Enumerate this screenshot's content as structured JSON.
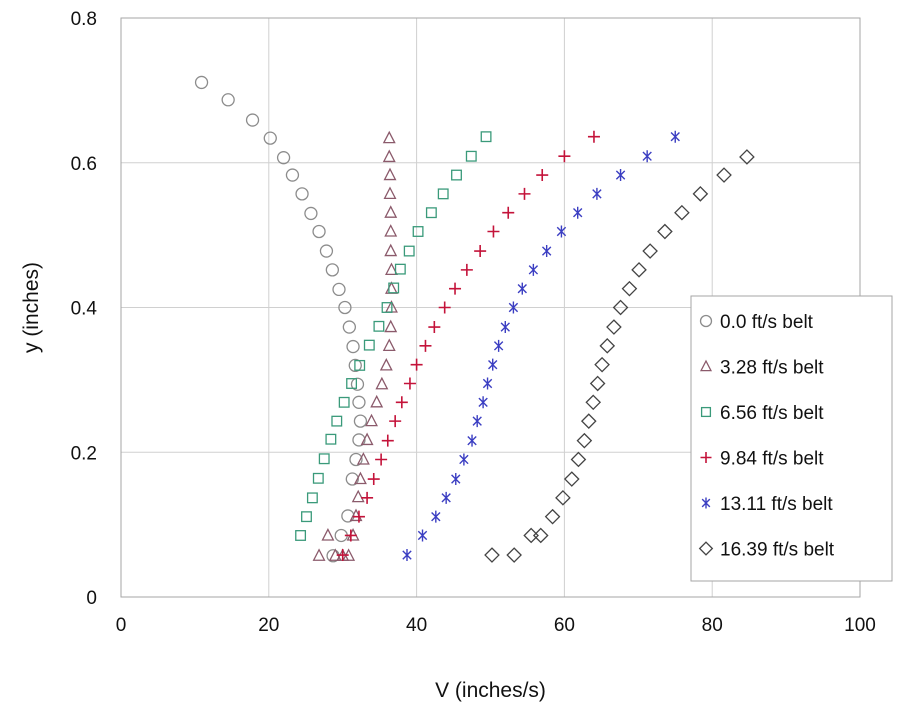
{
  "chart_data": {
    "type": "scatter",
    "title": "",
    "xlabel": "V (inches/s)",
    "ylabel": "y (inches)",
    "xlim": [
      0,
      100
    ],
    "ylim": [
      0,
      0.8
    ],
    "x_ticks": [
      "0",
      "20",
      "40",
      "60",
      "80",
      "100"
    ],
    "y_ticks": [
      "0",
      "0.2",
      "0.4",
      "0.6",
      "0.8"
    ],
    "grid": true,
    "legend_position": "right",
    "series": [
      {
        "name": "0.0 ft/s belt",
        "marker": "circle",
        "color": "#8c8c8c",
        "x": [
          10.9,
          14.5,
          17.8,
          20.2,
          22,
          23.2,
          24.5,
          25.7,
          26.8,
          27.8,
          28.6,
          29.5,
          30.3,
          30.9,
          31.4,
          31.7,
          32.0,
          32.2,
          32.4,
          32.2,
          31.8,
          31.3,
          30.7,
          29.8,
          28.7
        ],
        "y": [
          0.711,
          0.687,
          0.659,
          0.634,
          0.607,
          0.583,
          0.557,
          0.53,
          0.505,
          0.478,
          0.452,
          0.425,
          0.4,
          0.373,
          0.346,
          0.32,
          0.294,
          0.269,
          0.243,
          0.217,
          0.19,
          0.163,
          0.112,
          0.085,
          0.057
        ]
      },
      {
        "name": "3.28 ft/s belt",
        "marker": "triangle",
        "color": "#8b5a6b",
        "x": [
          36.3,
          36.3,
          36.4,
          36.4,
          36.5,
          36.5,
          36.5,
          36.6,
          36.6,
          36.6,
          36.5,
          36.3,
          35.9,
          35.3,
          34.6,
          33.9,
          33.3,
          32.8,
          32.4,
          32.1,
          31.8,
          31.4,
          30.8,
          30.0,
          29.0,
          28.0,
          26.8
        ],
        "y": [
          0.634,
          0.608,
          0.583,
          0.557,
          0.531,
          0.505,
          0.478,
          0.452,
          0.426,
          0.4,
          0.373,
          0.347,
          0.32,
          0.294,
          0.269,
          0.243,
          0.217,
          0.19,
          0.163,
          0.138,
          0.112,
          0.085,
          0.057,
          0.057,
          0.057,
          0.085,
          0.057
        ]
      },
      {
        "name": "6.56 ft/s belt",
        "marker": "square",
        "color": "#3a9a7a",
        "x": [
          49.4,
          47.4,
          45.4,
          43.6,
          42.0,
          40.2,
          39.0,
          37.8,
          36.9,
          36.0,
          34.9,
          33.6,
          32.3,
          31.2,
          30.2,
          29.2,
          28.4,
          27.5,
          26.7,
          25.9,
          25.1,
          24.3
        ],
        "y": [
          0.636,
          0.609,
          0.583,
          0.557,
          0.531,
          0.505,
          0.478,
          0.453,
          0.427,
          0.4,
          0.374,
          0.348,
          0.32,
          0.295,
          0.269,
          0.243,
          0.218,
          0.191,
          0.164,
          0.137,
          0.111,
          0.085
        ]
      },
      {
        "name": "9.84 ft/s belt",
        "marker": "plus",
        "color": "#c4133a",
        "x": [
          64.0,
          60.0,
          57.0,
          54.6,
          52.4,
          50.4,
          48.6,
          46.8,
          45.2,
          43.8,
          42.4,
          41.2,
          40.0,
          39.1,
          38.0,
          37.1,
          36.1,
          35.2,
          34.2,
          33.3,
          32.2,
          31.1,
          30.0
        ],
        "y": [
          0.636,
          0.609,
          0.583,
          0.557,
          0.531,
          0.505,
          0.478,
          0.452,
          0.426,
          0.4,
          0.373,
          0.347,
          0.321,
          0.295,
          0.269,
          0.243,
          0.216,
          0.19,
          0.163,
          0.137,
          0.111,
          0.085,
          0.058
        ]
      },
      {
        "name": "13.11 ft/s belt",
        "marker": "asterisk",
        "color": "#3b3ec2",
        "x": [
          75.0,
          71.2,
          67.6,
          64.4,
          61.8,
          59.6,
          57.6,
          55.8,
          54.3,
          53.1,
          52.0,
          51.1,
          50.3,
          49.6,
          49.0,
          48.2,
          47.5,
          46.4,
          45.3,
          44.0,
          42.6,
          40.8,
          38.7
        ],
        "y": [
          0.636,
          0.609,
          0.583,
          0.557,
          0.531,
          0.505,
          0.478,
          0.452,
          0.426,
          0.4,
          0.373,
          0.347,
          0.321,
          0.295,
          0.269,
          0.243,
          0.216,
          0.19,
          0.163,
          0.137,
          0.111,
          0.085,
          0.058
        ]
      },
      {
        "name": "16.39 ft/s belt",
        "marker": "diamond",
        "color": "#444444",
        "x": [
          84.7,
          81.6,
          78.4,
          75.9,
          73.6,
          71.6,
          70.1,
          68.8,
          67.6,
          66.7,
          65.8,
          65.1,
          64.5,
          63.9,
          63.3,
          62.7,
          61.9,
          61.0,
          59.8,
          58.4,
          56.8,
          55.5,
          53.2,
          50.2
        ],
        "y": [
          0.608,
          0.583,
          0.557,
          0.531,
          0.505,
          0.478,
          0.452,
          0.426,
          0.4,
          0.373,
          0.347,
          0.321,
          0.295,
          0.269,
          0.243,
          0.216,
          0.19,
          0.163,
          0.137,
          0.111,
          0.085,
          0.085,
          0.058,
          0.058
        ]
      }
    ]
  }
}
